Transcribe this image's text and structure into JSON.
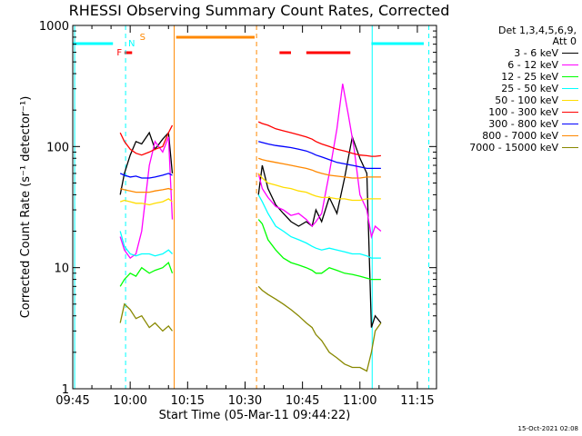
{
  "chart_data": {
    "type": "line",
    "title": "RHESSI Observing Summary Count Rates, Corrected",
    "xlabel": "Start Time (05-Mar-11 09:44:22)",
    "ylabel": "Corrected Count Rate (s⁻¹ detector⁻¹)",
    "x_ticks": [
      "09:45",
      "10:00",
      "10:15",
      "10:30",
      "10:45",
      "11:00",
      "11:15"
    ],
    "x_tick_minutes": [
      0,
      15,
      30,
      45,
      60,
      75,
      90
    ],
    "xlim_minutes": [
      0,
      95
    ],
    "y_scale": "log",
    "y_ticks": [
      "1",
      "10",
      "100",
      "1000"
    ],
    "ylim": [
      1,
      1000
    ],
    "legend_header": [
      "Det 1,3,4,5,6,9,",
      "Att 0"
    ],
    "series": [
      {
        "name": "3 - 6 keV",
        "color": "#000000",
        "x": [
          12.4,
          13.5,
          15,
          16.5,
          18,
          20,
          21.5,
          23.5,
          25,
          26,
          48.5,
          49.5,
          51,
          53,
          55,
          57,
          59,
          61,
          62.5,
          63.5,
          65,
          67,
          69,
          71,
          73,
          75,
          76.8,
          78,
          79,
          80.5
        ],
        "y": [
          40,
          60,
          85,
          110,
          105,
          130,
          95,
          115,
          130,
          60,
          40,
          70,
          45,
          33,
          28,
          24,
          22,
          24,
          22,
          30,
          24,
          38,
          28,
          55,
          120,
          80,
          60,
          3.2,
          4,
          3.5
        ]
      },
      {
        "name": "6 - 12 keV",
        "color": "#ff00ff",
        "x": [
          12.4,
          13.5,
          15,
          16.5,
          18,
          20,
          21.5,
          23.5,
          25,
          26,
          48.5,
          49.5,
          51,
          53,
          55,
          57,
          59,
          61,
          62.5,
          63.5,
          65,
          67,
          69,
          70.5,
          72,
          73.5,
          75,
          76.8,
          78,
          79,
          80.5
        ],
        "y": [
          18,
          14,
          12,
          13,
          20,
          70,
          110,
          90,
          120,
          25,
          60,
          45,
          38,
          32,
          30,
          27,
          28,
          25,
          22,
          24,
          28,
          60,
          140,
          330,
          180,
          95,
          40,
          30,
          18,
          22,
          20
        ]
      },
      {
        "name": "12 - 25 keV",
        "color": "#00ff00",
        "x": [
          12.4,
          13.5,
          15,
          16.5,
          18,
          20,
          21.5,
          23.5,
          25,
          26,
          48.5,
          49.5,
          51,
          53,
          55,
          57,
          59,
          61,
          62.5,
          63.5,
          65,
          67,
          69,
          71,
          73,
          75,
          76.8,
          78,
          79,
          80.5
        ],
        "y": [
          7,
          8,
          9,
          8.5,
          10,
          9,
          9.5,
          10,
          11,
          9,
          25,
          23,
          17,
          14,
          12,
          11,
          10.5,
          10,
          9.5,
          9,
          9,
          10,
          9.5,
          9,
          8.8,
          8.5,
          8.2,
          8,
          8,
          8
        ]
      },
      {
        "name": "25 - 50 keV",
        "color": "#00ffff",
        "x": [
          12.4,
          13.5,
          15,
          16.5,
          18,
          20,
          21.5,
          23.5,
          25,
          26,
          48.5,
          49.5,
          51,
          53,
          55,
          57,
          59,
          61,
          62.5,
          63.5,
          65,
          67,
          69,
          71,
          73,
          75,
          76.8,
          78,
          79,
          80.5
        ],
        "y": [
          20,
          15,
          13,
          12.5,
          13,
          13,
          12.5,
          13,
          14,
          13,
          40,
          35,
          28,
          22,
          20,
          18,
          17,
          16,
          15,
          14.5,
          14,
          14.5,
          14,
          13.5,
          13,
          13,
          12.5,
          12,
          12,
          12
        ]
      },
      {
        "name": "50 - 100 keV",
        "color": "#ffdd00",
        "x": [
          12.4,
          13.5,
          15,
          16.5,
          18,
          20,
          21.5,
          23.5,
          25,
          26,
          48.5,
          49.5,
          51,
          53,
          55,
          57,
          59,
          61,
          62.5,
          63.5,
          65,
          67,
          69,
          71,
          73,
          75,
          76.8,
          78,
          79,
          80.5
        ],
        "y": [
          35,
          36,
          35,
          34,
          34,
          33,
          34,
          35,
          37,
          35,
          60,
          55,
          50,
          48,
          46,
          45,
          43,
          42,
          40,
          39,
          38,
          38,
          37,
          37,
          36,
          36,
          37,
          37,
          37,
          37
        ]
      },
      {
        "name": "100 - 300 keV",
        "color": "#ff0000",
        "x": [
          12.4,
          13.5,
          15,
          16.5,
          18,
          20,
          21.5,
          23.5,
          25,
          26,
          48.5,
          49.5,
          51,
          53,
          55,
          57,
          59,
          61,
          62.5,
          63.5,
          65,
          67,
          69,
          71,
          73,
          75,
          76.8,
          78,
          79,
          80.5
        ],
        "y": [
          130,
          110,
          95,
          88,
          85,
          90,
          95,
          100,
          130,
          150,
          160,
          155,
          150,
          140,
          135,
          130,
          125,
          120,
          115,
          110,
          105,
          100,
          95,
          92,
          88,
          85,
          84,
          83,
          83,
          84
        ]
      },
      {
        "name": "300 - 800 keV",
        "color": "#0000ff",
        "x": [
          12.4,
          13.5,
          15,
          16.5,
          18,
          20,
          21.5,
          23.5,
          25,
          26,
          48.5,
          49.5,
          51,
          53,
          55,
          57,
          59,
          61,
          62.5,
          63.5,
          65,
          67,
          69,
          71,
          73,
          75,
          76.8,
          78,
          79,
          80.5
        ],
        "y": [
          60,
          58,
          56,
          57,
          55,
          55,
          56,
          58,
          60,
          58,
          110,
          108,
          105,
          102,
          100,
          98,
          95,
          92,
          88,
          85,
          82,
          78,
          74,
          72,
          70,
          68,
          66,
          66,
          66,
          66
        ]
      },
      {
        "name": "800 - 7000 keV",
        "color": "#ff8800",
        "x": [
          12.4,
          13.5,
          15,
          16.5,
          18,
          20,
          21.5,
          23.5,
          25,
          26,
          48.5,
          49.5,
          51,
          53,
          55,
          57,
          59,
          61,
          62.5,
          63.5,
          65,
          67,
          69,
          71,
          73,
          75,
          76.8,
          78,
          79,
          80.5
        ],
        "y": [
          45,
          44,
          43,
          42,
          42,
          42,
          43,
          44,
          45,
          44,
          80,
          78,
          76,
          74,
          72,
          70,
          68,
          66,
          64,
          62,
          60,
          58,
          57,
          56,
          55,
          55,
          56,
          56,
          56,
          56
        ]
      },
      {
        "name": "7000 - 15000 keV",
        "color": "#888800",
        "x": [
          12.4,
          13.5,
          15,
          16.5,
          18,
          20,
          21.5,
          23.5,
          25,
          26,
          48.5,
          49.5,
          51,
          53,
          55,
          57,
          59,
          61,
          62.5,
          63.5,
          65,
          67,
          69,
          71,
          73,
          75,
          76.8,
          78,
          79,
          80.5
        ],
        "y": [
          3.5,
          5,
          4.5,
          3.8,
          4,
          3.2,
          3.5,
          3,
          3.3,
          3,
          7,
          6.5,
          6,
          5.5,
          5,
          4.5,
          4,
          3.5,
          3.2,
          2.8,
          2.5,
          2,
          1.8,
          1.6,
          1.5,
          1.5,
          1.4,
          2,
          3,
          3.5
        ]
      }
    ],
    "markers": {
      "attenuator_label": "F",
      "night_label": "N",
      "saa_label": "S"
    }
  },
  "timestamp": "15-Oct-2021 02:08"
}
